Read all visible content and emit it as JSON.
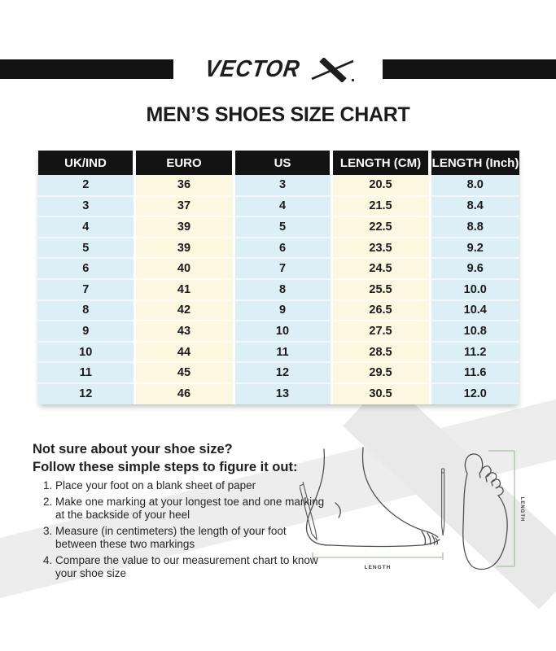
{
  "brand": {
    "logo_text": "VECTOR",
    "logo_mark": "X",
    "registered_mark": "®"
  },
  "title": "MEN’S SHOES SIZE CHART",
  "chart_data": {
    "type": "table",
    "title": "MEN’S SHOES SIZE CHART",
    "columns": [
      "UK/IND",
      "EURO",
      "US",
      "LENGTH (CM)",
      "LENGTH (Inch)"
    ],
    "rows": [
      [
        "2",
        "36",
        "3",
        "20.5",
        "8.0"
      ],
      [
        "3",
        "37",
        "4",
        "21.5",
        "8.4"
      ],
      [
        "4",
        "39",
        "5",
        "22.5",
        "8.8"
      ],
      [
        "5",
        "39",
        "6",
        "23.5",
        "9.2"
      ],
      [
        "6",
        "40",
        "7",
        "24.5",
        "9.6"
      ],
      [
        "7",
        "41",
        "8",
        "25.5",
        "10.0"
      ],
      [
        "8",
        "42",
        "9",
        "26.5",
        "10.4"
      ],
      [
        "9",
        "43",
        "10",
        "27.5",
        "10.8"
      ],
      [
        "10",
        "44",
        "11",
        "28.5",
        "11.2"
      ],
      [
        "11",
        "45",
        "12",
        "29.5",
        "11.6"
      ],
      [
        "12",
        "46",
        "13",
        "30.5",
        "12.0"
      ]
    ]
  },
  "help": {
    "heading_line1": "Not sure about your shoe size?",
    "heading_line2": "Follow these simple steps to figure it out:",
    "steps": [
      "Place your foot on a blank sheet of paper",
      "Make one marking at your longest toe and one marking at the backside of your heel",
      "Measure (in centimeters) the length of your foot between these two markings",
      "Compare the value to our measurement chart to know your shoe size"
    ]
  },
  "diagram": {
    "side_view_label": "LENGTH",
    "top_view_label": "LENGTH"
  },
  "colors": {
    "banner_black": "#131313",
    "header_bg": "#131313",
    "header_text": "#ffffff",
    "col_blue": "#dceef6",
    "col_cream": "#fcf7e1",
    "measure_green": "#a5c3a0",
    "watermark_gray": "#ededed",
    "watermark_gray2": "#e9e9e9"
  }
}
